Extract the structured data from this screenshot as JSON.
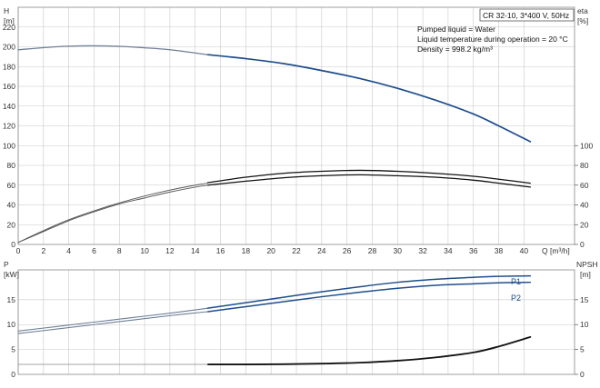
{
  "chart_data": [
    {
      "type": "line",
      "panel": "upper",
      "left_axis_label": "H",
      "left_axis_unit": "[m]",
      "right_axis_label": "eta",
      "right_axis_unit": "[%]",
      "xlabel": "Q",
      "xunit": "[m³/h]",
      "title_box": "CR 32-10, 3*400 V, 50Hz",
      "notes": [
        "Pumped liquid = Water",
        "Liquid temperature during operation = 20 °C",
        "Density = 998.2 kg/m³"
      ],
      "xlim": [
        0,
        44
      ],
      "ylim": [
        0,
        240
      ],
      "y_ticks": [
        0,
        20,
        40,
        60,
        80,
        100,
        120,
        140,
        160,
        180,
        200,
        220
      ],
      "right_ticks": [
        0,
        20,
        40,
        60,
        80,
        100
      ],
      "x_ticks": [
        0,
        2,
        4,
        6,
        8,
        10,
        12,
        14,
        16,
        18,
        20,
        22,
        24,
        26,
        28,
        30,
        32,
        34,
        36,
        38,
        40
      ],
      "grid": true,
      "series": [
        {
          "kind": "head",
          "color": "#6e7f96",
          "points": [
            [
              0,
              197
            ],
            [
              3,
              200
            ],
            [
              5.5,
              201
            ],
            [
              8,
              200.5
            ],
            [
              10,
              199
            ],
            [
              12,
              197
            ],
            [
              15,
              192
            ]
          ]
        },
        {
          "kind": "head",
          "color": "#1f4e8c",
          "points": [
            [
              15,
              192
            ],
            [
              18,
              188
            ],
            [
              21,
              183
            ],
            [
              24,
              176
            ],
            [
              27,
              168
            ],
            [
              30,
              158
            ],
            [
              33,
              146
            ],
            [
              36,
              132
            ],
            [
              38,
              120
            ],
            [
              40.5,
              104
            ]
          ]
        },
        {
          "kind": "efficiency",
          "color": "#555555",
          "points": [
            [
              0,
              2
            ],
            [
              2,
              14
            ],
            [
              4,
              25
            ],
            [
              6,
              34
            ],
            [
              8,
              42
            ],
            [
              10,
              49
            ],
            [
              12,
              55
            ],
            [
              14,
              60
            ],
            [
              15,
              62
            ]
          ]
        },
        {
          "kind": "efficiency",
          "color": "#555555",
          "points": [
            [
              0,
              2
            ],
            [
              2,
              13
            ],
            [
              4,
              24
            ],
            [
              6,
              33
            ],
            [
              8,
              41
            ],
            [
              10,
              47
            ],
            [
              12,
              53
            ],
            [
              14,
              58
            ],
            [
              15,
              60
            ]
          ]
        },
        {
          "kind": "efficiency",
          "color": "#111111",
          "points": [
            [
              15,
              62.5
            ],
            [
              18,
              68
            ],
            [
              21,
              72
            ],
            [
              24,
              74
            ],
            [
              27,
              75
            ],
            [
              30,
              74
            ],
            [
              33,
              72
            ],
            [
              36,
              69
            ],
            [
              38,
              66
            ],
            [
              40.5,
              62
            ]
          ]
        },
        {
          "kind": "efficiency",
          "color": "#111111",
          "points": [
            [
              15,
              60
            ],
            [
              18,
              64
            ],
            [
              21,
              67.5
            ],
            [
              24,
              69.5
            ],
            [
              27,
              70.5
            ],
            [
              30,
              69.5
            ],
            [
              33,
              68
            ],
            [
              36,
              65
            ],
            [
              38,
              62
            ],
            [
              40.5,
              58
            ]
          ]
        }
      ]
    },
    {
      "type": "line",
      "panel": "lower",
      "left_axis_label": "P",
      "left_axis_unit": "[kW]",
      "right_axis_label": "NPSH",
      "right_axis_unit": "[m]",
      "xlim": [
        0,
        44
      ],
      "ylim": [
        0,
        21
      ],
      "y_ticks": [
        0,
        5,
        10,
        15
      ],
      "right_ticks": [
        0,
        5,
        10,
        15
      ],
      "x_ticks": [
        0,
        2,
        4,
        6,
        8,
        10,
        12,
        14,
        16,
        18,
        20,
        22,
        24,
        26,
        28,
        30,
        32,
        34,
        36,
        38,
        40
      ],
      "grid": true,
      "series": [
        {
          "kind": "power",
          "name": "P1",
          "color": "#6e7f96",
          "points": [
            [
              0,
              8.7
            ],
            [
              3,
              9.6
            ],
            [
              6,
              10.5
            ],
            [
              9,
              11.4
            ],
            [
              12,
              12.3
            ],
            [
              15,
              13.3
            ]
          ]
        },
        {
          "kind": "power",
          "name": "P1",
          "color": "#1f4e8c",
          "points": [
            [
              15,
              13.3
            ],
            [
              18,
              14.4
            ],
            [
              21,
              15.5
            ],
            [
              24,
              16.6
            ],
            [
              27,
              17.6
            ],
            [
              30,
              18.5
            ],
            [
              33,
              19.1
            ],
            [
              36,
              19.5
            ],
            [
              38,
              19.7
            ],
            [
              40.5,
              19.8
            ]
          ]
        },
        {
          "kind": "power",
          "name": "P2",
          "color": "#6e7f96",
          "points": [
            [
              0,
              8.2
            ],
            [
              3,
              9.1
            ],
            [
              6,
              10.0
            ],
            [
              9,
              10.9
            ],
            [
              12,
              11.8
            ],
            [
              15,
              12.6
            ]
          ]
        },
        {
          "kind": "power",
          "name": "P2",
          "color": "#1f4e8c",
          "points": [
            [
              15,
              12.6
            ],
            [
              18,
              13.6
            ],
            [
              21,
              14.6
            ],
            [
              24,
              15.6
            ],
            [
              27,
              16.5
            ],
            [
              30,
              17.3
            ],
            [
              33,
              17.9
            ],
            [
              36,
              18.2
            ],
            [
              38,
              18.4
            ],
            [
              40.5,
              18.5
            ]
          ]
        },
        {
          "kind": "npsh",
          "color": "#111111",
          "points": [
            [
              15,
              2.0
            ],
            [
              18,
              2.0
            ],
            [
              21,
              2.05
            ],
            [
              24,
              2.15
            ],
            [
              27,
              2.35
            ],
            [
              30,
              2.75
            ],
            [
              33,
              3.4
            ],
            [
              36,
              4.4
            ],
            [
              38,
              5.6
            ],
            [
              40.5,
              7.5
            ]
          ]
        },
        {
          "kind": "npsh-reference",
          "color": "#888888",
          "points": [
            [
              0,
              2.0
            ],
            [
              15,
              2.0
            ]
          ]
        }
      ],
      "curve_labels": [
        "P1",
        "P2"
      ]
    }
  ]
}
